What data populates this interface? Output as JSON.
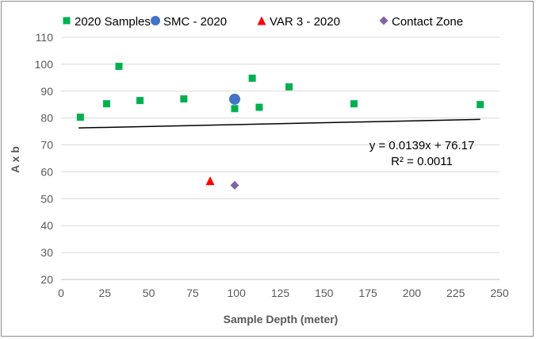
{
  "chart_data": {
    "type": "scatter",
    "title": "",
    "xlabel": "Sample Depth (meter)",
    "ylabel": "A x b",
    "xlim": [
      0,
      250
    ],
    "ylim": [
      20,
      110
    ],
    "x_ticks": [
      0,
      25,
      50,
      75,
      100,
      125,
      150,
      175,
      200,
      225,
      250
    ],
    "y_ticks": [
      20,
      30,
      40,
      50,
      60,
      70,
      80,
      90,
      100,
      110
    ],
    "grid": "horizontal",
    "legend_position": "top",
    "series": [
      {
        "name": "2020 Samples",
        "marker": "square",
        "color": "#00b050",
        "points": [
          {
            "x": 11,
            "y": 80.3
          },
          {
            "x": 26,
            "y": 85.3
          },
          {
            "x": 33,
            "y": 99.2
          },
          {
            "x": 45,
            "y": 86.5
          },
          {
            "x": 70,
            "y": 87.1
          },
          {
            "x": 99,
            "y": 83.5
          },
          {
            "x": 109,
            "y": 94.8
          },
          {
            "x": 113,
            "y": 84.0
          },
          {
            "x": 130,
            "y": 91.6
          },
          {
            "x": 167,
            "y": 85.3
          },
          {
            "x": 239,
            "y": 85.0
          }
        ]
      },
      {
        "name": "SMC - 2020",
        "marker": "circle",
        "color": "#4472c4",
        "points": [
          {
            "x": 99,
            "y": 87.0
          }
        ]
      },
      {
        "name": "VAR 3 - 2020",
        "marker": "triangle",
        "color": "#ff0000",
        "points": [
          {
            "x": 85,
            "y": 56.7
          }
        ]
      },
      {
        "name": "Contact Zone",
        "marker": "diamond",
        "color": "#8064a2",
        "points": [
          {
            "x": 99,
            "y": 55.0
          }
        ]
      }
    ],
    "trendline": {
      "slope": 0.0139,
      "intercept": 76.17,
      "x_range": [
        10,
        239
      ],
      "color": "#000000",
      "equation": "y = 0.0139x + 76.17",
      "r_squared": "R² = 0.0011"
    }
  }
}
